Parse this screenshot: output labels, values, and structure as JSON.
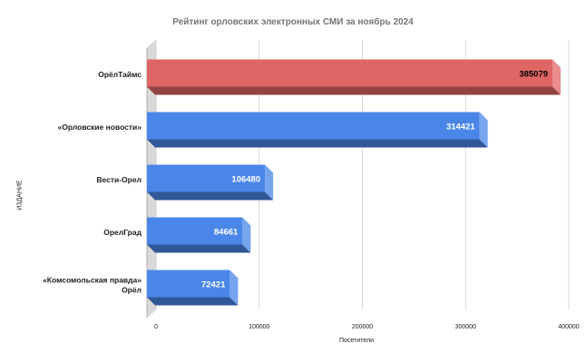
{
  "chart_data": {
    "type": "bar",
    "orientation": "horizontal",
    "style": "3d",
    "title": "Рейтинг орловских электронных СМИ за ноябрь 2024",
    "xlabel": "Посетители",
    "ylabel": "ИЗДАНИЕ",
    "categories": [
      [
        "ОрёлТаймс"
      ],
      [
        "«Орловские новости»"
      ],
      [
        "Вести-Орел"
      ],
      [
        "ОрелГрад"
      ],
      [
        "«Комсомольская правда»",
        "Орёл"
      ]
    ],
    "values": [
      385079,
      314421,
      106480,
      84661,
      72421
    ],
    "data_labels": [
      "385079",
      "314421",
      "106480",
      "84661",
      "72421"
    ],
    "colors": [
      "#e06666",
      "#4a86e8",
      "#4a86e8",
      "#4a86e8",
      "#4a86e8"
    ],
    "label_colors": [
      "#000000",
      "#ffffff",
      "#ffffff",
      "#ffffff",
      "#ffffff"
    ],
    "xlim": [
      0,
      400000
    ],
    "xticks": [
      0,
      100000,
      200000,
      300000,
      400000
    ],
    "xtick_labels": [
      "0",
      "100000",
      "200000",
      "300000",
      "400000"
    ],
    "grid": true,
    "legend": "none"
  }
}
